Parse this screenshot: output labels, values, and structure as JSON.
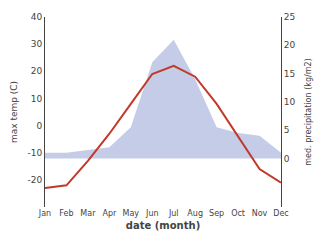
{
  "chart_data": {
    "type": "line",
    "categories": [
      "Jan",
      "Feb",
      "Mar",
      "Apr",
      "May",
      "Jun",
      "Jul",
      "Aug",
      "Sep",
      "Oct",
      "Nov",
      "Dec"
    ],
    "xlabel": "date (month)",
    "ylabel": "max temp (C)",
    "y2label": "med. precipitation (kg/m2)",
    "series": [
      {
        "type": "area",
        "axis": "y2",
        "color": "#c5cce8",
        "values": [
          1.0,
          1.0,
          1.5,
          2.0,
          5.5,
          17.0,
          21.0,
          14.0,
          5.5,
          4.5,
          4.0,
          1.0
        ]
      },
      {
        "type": "line",
        "color": "#c0392b",
        "values": [
          -23,
          -22,
          -13,
          -3,
          8,
          19,
          22,
          18,
          8,
          -4,
          -16,
          -21
        ]
      }
    ],
    "ylim": [
      -30,
      40
    ],
    "yticks": [
      -20,
      -10,
      0,
      10,
      20,
      30,
      40
    ],
    "y2lim": [
      -8.57,
      25
    ],
    "y2ticks": [
      0,
      5,
      10,
      15,
      20,
      25
    ],
    "grid": false
  }
}
